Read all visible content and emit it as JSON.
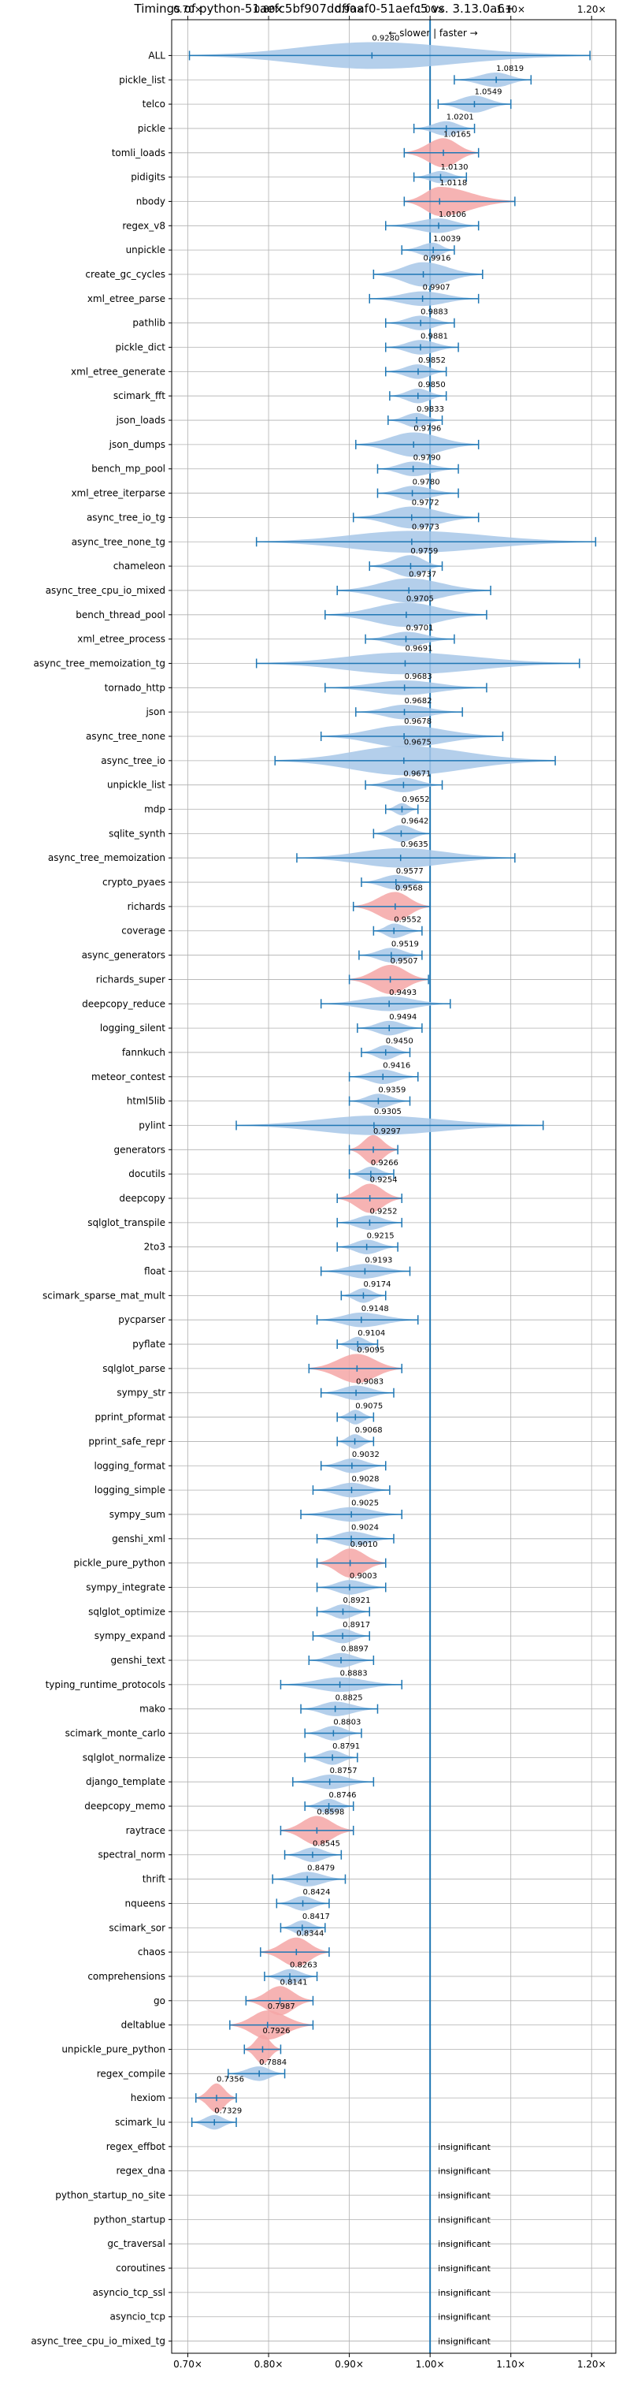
{
  "chart_data": {
    "type": "violin",
    "title": "Timings of python-51aefc5bf907ddffaaf0-51aefc5 vs. 3.13.0a6+",
    "direction_label": "← slower | faster →",
    "xlim": [
      0.68,
      1.23
    ],
    "xticks": [
      0.7,
      0.8,
      0.9,
      1.0,
      1.1,
      1.2
    ],
    "xtick_labels": [
      "0.70×",
      "0.80×",
      "0.90×",
      "1.00×",
      "1.10×",
      "1.20×"
    ],
    "reference_line": 1.0,
    "grid": true,
    "colors": {
      "normal": "#a7c7e7",
      "highlight": "#f4a6a6",
      "line": "#1f77b4",
      "grid": "#b0b0b0"
    },
    "insignificant_label": "insignificant",
    "rows": [
      {
        "name": "ALL",
        "value": 0.928,
        "label": "0.9280",
        "lo": 0.702,
        "hi": 1.198,
        "w": 0.55,
        "hl": false
      },
      {
        "name": "pickle_list",
        "value": 1.0819,
        "label": "1.0819",
        "lo": 1.03,
        "hi": 1.125,
        "w": 0.3,
        "hl": false
      },
      {
        "name": "telco",
        "value": 1.0549,
        "label": "1.0549",
        "lo": 1.01,
        "hi": 1.1,
        "w": 0.35,
        "hl": false
      },
      {
        "name": "pickle",
        "value": 1.0201,
        "label": "1.0201",
        "lo": 0.98,
        "hi": 1.055,
        "w": 0.3,
        "hl": false
      },
      {
        "name": "tomli_loads",
        "value": 1.0165,
        "label": "1.0165",
        "lo": 0.968,
        "hi": 1.06,
        "w": 0.6,
        "hl": true
      },
      {
        "name": "pidigits",
        "value": 1.013,
        "label": "1.0130",
        "lo": 0.98,
        "hi": 1.045,
        "w": 0.25,
        "hl": false
      },
      {
        "name": "nbody",
        "value": 1.0118,
        "label": "1.0118",
        "lo": 0.968,
        "hi": 1.105,
        "w": 0.6,
        "hl": true
      },
      {
        "name": "regex_v8",
        "value": 1.0106,
        "label": "1.0106",
        "lo": 0.945,
        "hi": 1.06,
        "w": 0.3,
        "hl": false
      },
      {
        "name": "unpickle",
        "value": 1.0039,
        "label": "1.0039",
        "lo": 0.965,
        "hi": 1.03,
        "w": 0.3,
        "hl": false
      },
      {
        "name": "create_gc_cycles",
        "value": 0.9916,
        "label": "0.9916",
        "lo": 0.93,
        "hi": 1.065,
        "w": 0.5,
        "hl": false
      },
      {
        "name": "xml_etree_parse",
        "value": 0.9907,
        "label": "0.9907",
        "lo": 0.925,
        "hi": 1.06,
        "w": 0.3,
        "hl": false
      },
      {
        "name": "pathlib",
        "value": 0.9883,
        "label": "0.9883",
        "lo": 0.945,
        "hi": 1.03,
        "w": 0.3,
        "hl": false
      },
      {
        "name": "pickle_dict",
        "value": 0.9881,
        "label": "0.9881",
        "lo": 0.945,
        "hi": 1.035,
        "w": 0.3,
        "hl": false
      },
      {
        "name": "xml_etree_generate",
        "value": 0.9852,
        "label": "0.9852",
        "lo": 0.945,
        "hi": 1.02,
        "w": 0.3,
        "hl": false
      },
      {
        "name": "scimark_fft",
        "value": 0.985,
        "label": "0.9850",
        "lo": 0.95,
        "hi": 1.02,
        "w": 0.3,
        "hl": false
      },
      {
        "name": "json_loads",
        "value": 0.9833,
        "label": "0.9833",
        "lo": 0.948,
        "hi": 1.015,
        "w": 0.3,
        "hl": false
      },
      {
        "name": "json_dumps",
        "value": 0.9796,
        "label": "0.9796",
        "lo": 0.908,
        "hi": 1.06,
        "w": 0.5,
        "hl": false
      },
      {
        "name": "bench_mp_pool",
        "value": 0.979,
        "label": "0.9790",
        "lo": 0.935,
        "hi": 1.035,
        "w": 0.3,
        "hl": false
      },
      {
        "name": "xml_etree_iterparse",
        "value": 0.978,
        "label": "0.9780",
        "lo": 0.935,
        "hi": 1.035,
        "w": 0.3,
        "hl": false
      },
      {
        "name": "async_tree_io_tg",
        "value": 0.9772,
        "label": "0.9772",
        "lo": 0.905,
        "hi": 1.06,
        "w": 0.45,
        "hl": false
      },
      {
        "name": "async_tree_none_tg",
        "value": 0.9773,
        "label": "0.9773",
        "lo": 0.785,
        "hi": 1.205,
        "w": 0.45,
        "hl": false
      },
      {
        "name": "chameleon",
        "value": 0.9759,
        "label": "0.9759",
        "lo": 0.925,
        "hi": 1.015,
        "w": 0.45,
        "hl": false
      },
      {
        "name": "async_tree_cpu_io_mixed",
        "value": 0.9737,
        "label": "0.9737",
        "lo": 0.885,
        "hi": 1.075,
        "w": 0.5,
        "hl": false
      },
      {
        "name": "bench_thread_pool",
        "value": 0.9705,
        "label": "0.9705",
        "lo": 0.87,
        "hi": 1.07,
        "w": 0.5,
        "hl": false
      },
      {
        "name": "xml_etree_process",
        "value": 0.9701,
        "label": "0.9701",
        "lo": 0.92,
        "hi": 1.03,
        "w": 0.3,
        "hl": false
      },
      {
        "name": "async_tree_memoization_tg",
        "value": 0.9691,
        "label": "0.9691",
        "lo": 0.785,
        "hi": 1.185,
        "w": 0.45,
        "hl": false
      },
      {
        "name": "tornado_http",
        "value": 0.9683,
        "label": "0.9683",
        "lo": 0.87,
        "hi": 1.07,
        "w": 0.3,
        "hl": false
      },
      {
        "name": "json",
        "value": 0.9682,
        "label": "0.9682",
        "lo": 0.908,
        "hi": 1.04,
        "w": 0.3,
        "hl": false
      },
      {
        "name": "async_tree_none",
        "value": 0.9678,
        "label": "0.9678",
        "lo": 0.865,
        "hi": 1.09,
        "w": 0.45,
        "hl": false
      },
      {
        "name": "async_tree_io",
        "value": 0.9675,
        "label": "0.9675",
        "lo": 0.808,
        "hi": 1.155,
        "w": 0.6,
        "hl": false
      },
      {
        "name": "unpickle_list",
        "value": 0.9671,
        "label": "0.9671",
        "lo": 0.92,
        "hi": 1.015,
        "w": 0.3,
        "hl": false
      },
      {
        "name": "mdp",
        "value": 0.9652,
        "label": "0.9652",
        "lo": 0.945,
        "hi": 0.985,
        "w": 0.25,
        "hl": false
      },
      {
        "name": "sqlite_synth",
        "value": 0.9642,
        "label": "0.9642",
        "lo": 0.93,
        "hi": 1.0,
        "w": 0.35,
        "hl": false
      },
      {
        "name": "async_tree_memoization",
        "value": 0.9635,
        "label": "0.9635",
        "lo": 0.835,
        "hi": 1.105,
        "w": 0.4,
        "hl": false
      },
      {
        "name": "crypto_pyaes",
        "value": 0.9577,
        "label": "0.9577",
        "lo": 0.915,
        "hi": 1.0,
        "w": 0.3,
        "hl": false
      },
      {
        "name": "richards",
        "value": 0.9568,
        "label": "0.9568",
        "lo": 0.905,
        "hi": 1.0,
        "w": 0.6,
        "hl": true
      },
      {
        "name": "coverage",
        "value": 0.9552,
        "label": "0.9552",
        "lo": 0.93,
        "hi": 0.99,
        "w": 0.3,
        "hl": false
      },
      {
        "name": "async_generators",
        "value": 0.9519,
        "label": "0.9519",
        "lo": 0.912,
        "hi": 0.99,
        "w": 0.3,
        "hl": false
      },
      {
        "name": "richards_super",
        "value": 0.9507,
        "label": "0.9507",
        "lo": 0.9,
        "hi": 0.998,
        "w": 0.6,
        "hl": true
      },
      {
        "name": "deepcopy_reduce",
        "value": 0.9493,
        "label": "0.9493",
        "lo": 0.865,
        "hi": 1.025,
        "w": 0.3,
        "hl": false
      },
      {
        "name": "logging_silent",
        "value": 0.9494,
        "label": "0.9494",
        "lo": 0.91,
        "hi": 0.99,
        "w": 0.3,
        "hl": false
      },
      {
        "name": "fannkuch",
        "value": 0.945,
        "label": "0.9450",
        "lo": 0.915,
        "hi": 0.975,
        "w": 0.3,
        "hl": false
      },
      {
        "name": "meteor_contest",
        "value": 0.9416,
        "label": "0.9416",
        "lo": 0.9,
        "hi": 0.985,
        "w": 0.3,
        "hl": false
      },
      {
        "name": "html5lib",
        "value": 0.9359,
        "label": "0.9359",
        "lo": 0.9,
        "hi": 0.975,
        "w": 0.3,
        "hl": false
      },
      {
        "name": "pylint",
        "value": 0.9305,
        "label": "0.9305",
        "lo": 0.76,
        "hi": 1.14,
        "w": 0.4,
        "hl": false
      },
      {
        "name": "generators",
        "value": 0.9297,
        "label": "0.9297",
        "lo": 0.9,
        "hi": 0.96,
        "w": 0.6,
        "hl": true
      },
      {
        "name": "docutils",
        "value": 0.9266,
        "label": "0.9266",
        "lo": 0.9,
        "hi": 0.955,
        "w": 0.3,
        "hl": false
      },
      {
        "name": "deepcopy",
        "value": 0.9254,
        "label": "0.9254",
        "lo": 0.885,
        "hi": 0.965,
        "w": 0.6,
        "hl": true
      },
      {
        "name": "sqlglot_transpile",
        "value": 0.9252,
        "label": "0.9252",
        "lo": 0.885,
        "hi": 0.965,
        "w": 0.3,
        "hl": false
      },
      {
        "name": "2to3",
        "value": 0.9215,
        "label": "0.9215",
        "lo": 0.885,
        "hi": 0.96,
        "w": 0.3,
        "hl": false
      },
      {
        "name": "float",
        "value": 0.9193,
        "label": "0.9193",
        "lo": 0.865,
        "hi": 0.975,
        "w": 0.3,
        "hl": false
      },
      {
        "name": "scimark_sparse_mat_mult",
        "value": 0.9174,
        "label": "0.9174",
        "lo": 0.89,
        "hi": 0.945,
        "w": 0.3,
        "hl": false
      },
      {
        "name": "pycparser",
        "value": 0.9148,
        "label": "0.9148",
        "lo": 0.86,
        "hi": 0.985,
        "w": 0.3,
        "hl": false
      },
      {
        "name": "pyflate",
        "value": 0.9104,
        "label": "0.9104",
        "lo": 0.885,
        "hi": 0.935,
        "w": 0.3,
        "hl": false
      },
      {
        "name": "sqlglot_parse",
        "value": 0.9095,
        "label": "0.9095",
        "lo": 0.85,
        "hi": 0.965,
        "w": 0.6,
        "hl": true
      },
      {
        "name": "sympy_str",
        "value": 0.9083,
        "label": "0.9083",
        "lo": 0.865,
        "hi": 0.955,
        "w": 0.3,
        "hl": false
      },
      {
        "name": "pprint_pformat",
        "value": 0.9075,
        "label": "0.9075",
        "lo": 0.885,
        "hi": 0.93,
        "w": 0.3,
        "hl": false
      },
      {
        "name": "pprint_safe_repr",
        "value": 0.9068,
        "label": "0.9068",
        "lo": 0.885,
        "hi": 0.93,
        "w": 0.3,
        "hl": false
      },
      {
        "name": "logging_format",
        "value": 0.9032,
        "label": "0.9032",
        "lo": 0.865,
        "hi": 0.945,
        "w": 0.3,
        "hl": false
      },
      {
        "name": "logging_simple",
        "value": 0.9028,
        "label": "0.9028",
        "lo": 0.855,
        "hi": 0.95,
        "w": 0.3,
        "hl": false
      },
      {
        "name": "sympy_sum",
        "value": 0.9025,
        "label": "0.9025",
        "lo": 0.84,
        "hi": 0.965,
        "w": 0.3,
        "hl": false
      },
      {
        "name": "genshi_xml",
        "value": 0.9024,
        "label": "0.9024",
        "lo": 0.86,
        "hi": 0.955,
        "w": 0.3,
        "hl": false
      },
      {
        "name": "pickle_pure_python",
        "value": 0.901,
        "label": "0.9010",
        "lo": 0.86,
        "hi": 0.945,
        "w": 0.6,
        "hl": true
      },
      {
        "name": "sympy_integrate",
        "value": 0.9003,
        "label": "0.9003",
        "lo": 0.86,
        "hi": 0.945,
        "w": 0.3,
        "hl": false
      },
      {
        "name": "sqlglot_optimize",
        "value": 0.8921,
        "label": "0.8921",
        "lo": 0.86,
        "hi": 0.925,
        "w": 0.3,
        "hl": false
      },
      {
        "name": "sympy_expand",
        "value": 0.8917,
        "label": "0.8917",
        "lo": 0.855,
        "hi": 0.925,
        "w": 0.3,
        "hl": false
      },
      {
        "name": "genshi_text",
        "value": 0.8897,
        "label": "0.8897",
        "lo": 0.85,
        "hi": 0.93,
        "w": 0.3,
        "hl": false
      },
      {
        "name": "typing_runtime_protocols",
        "value": 0.8883,
        "label": "0.8883",
        "lo": 0.815,
        "hi": 0.965,
        "w": 0.3,
        "hl": false
      },
      {
        "name": "mako",
        "value": 0.8825,
        "label": "0.8825",
        "lo": 0.84,
        "hi": 0.935,
        "w": 0.3,
        "hl": false
      },
      {
        "name": "scimark_monte_carlo",
        "value": 0.8803,
        "label": "0.8803",
        "lo": 0.845,
        "hi": 0.915,
        "w": 0.3,
        "hl": false
      },
      {
        "name": "sqlglot_normalize",
        "value": 0.8791,
        "label": "0.8791",
        "lo": 0.845,
        "hi": 0.91,
        "w": 0.3,
        "hl": false
      },
      {
        "name": "django_template",
        "value": 0.8757,
        "label": "0.8757",
        "lo": 0.83,
        "hi": 0.93,
        "w": 0.3,
        "hl": false
      },
      {
        "name": "deepcopy_memo",
        "value": 0.8746,
        "label": "0.8746",
        "lo": 0.845,
        "hi": 0.905,
        "w": 0.3,
        "hl": false
      },
      {
        "name": "raytrace",
        "value": 0.8598,
        "label": "0.8598",
        "lo": 0.815,
        "hi": 0.905,
        "w": 0.6,
        "hl": true
      },
      {
        "name": "spectral_norm",
        "value": 0.8545,
        "label": "0.8545",
        "lo": 0.82,
        "hi": 0.89,
        "w": 0.3,
        "hl": false
      },
      {
        "name": "thrift",
        "value": 0.8479,
        "label": "0.8479",
        "lo": 0.805,
        "hi": 0.895,
        "w": 0.3,
        "hl": false
      },
      {
        "name": "nqueens",
        "value": 0.8424,
        "label": "0.8424",
        "lo": 0.81,
        "hi": 0.875,
        "w": 0.3,
        "hl": false
      },
      {
        "name": "scimark_sor",
        "value": 0.8417,
        "label": "0.8417",
        "lo": 0.815,
        "hi": 0.87,
        "w": 0.3,
        "hl": false
      },
      {
        "name": "chaos",
        "value": 0.8344,
        "label": "0.8344",
        "lo": 0.79,
        "hi": 0.875,
        "w": 0.6,
        "hl": true
      },
      {
        "name": "comprehensions",
        "value": 0.8263,
        "label": "0.8263",
        "lo": 0.795,
        "hi": 0.86,
        "w": 0.3,
        "hl": false
      },
      {
        "name": "go",
        "value": 0.8141,
        "label": "0.8141",
        "lo": 0.772,
        "hi": 0.855,
        "w": 0.6,
        "hl": true
      },
      {
        "name": "deltablue",
        "value": 0.7987,
        "label": "0.7987",
        "lo": 0.752,
        "hi": 0.855,
        "w": 0.6,
        "hl": true
      },
      {
        "name": "unpickle_pure_python",
        "value": 0.7926,
        "label": "0.7926",
        "lo": 0.77,
        "hi": 0.815,
        "w": 0.6,
        "hl": true
      },
      {
        "name": "regex_compile",
        "value": 0.7884,
        "label": "0.7884",
        "lo": 0.75,
        "hi": 0.82,
        "w": 0.3,
        "hl": false
      },
      {
        "name": "hexiom",
        "value": 0.7356,
        "label": "0.7356",
        "lo": 0.71,
        "hi": 0.76,
        "w": 0.6,
        "hl": true
      },
      {
        "name": "scimark_lu",
        "value": 0.7329,
        "label": "0.7329",
        "lo": 0.705,
        "hi": 0.76,
        "w": 0.3,
        "hl": false
      },
      {
        "name": "regex_effbot",
        "value": null,
        "label": "insignificant"
      },
      {
        "name": "regex_dna",
        "value": null,
        "label": "insignificant"
      },
      {
        "name": "python_startup_no_site",
        "value": null,
        "label": "insignificant"
      },
      {
        "name": "python_startup",
        "value": null,
        "label": "insignificant"
      },
      {
        "name": "gc_traversal",
        "value": null,
        "label": "insignificant"
      },
      {
        "name": "coroutines",
        "value": null,
        "label": "insignificant"
      },
      {
        "name": "asyncio_tcp_ssl",
        "value": null,
        "label": "insignificant"
      },
      {
        "name": "asyncio_tcp",
        "value": null,
        "label": "insignificant"
      },
      {
        "name": "async_tree_cpu_io_mixed_tg",
        "value": null,
        "label": "insignificant"
      }
    ]
  }
}
